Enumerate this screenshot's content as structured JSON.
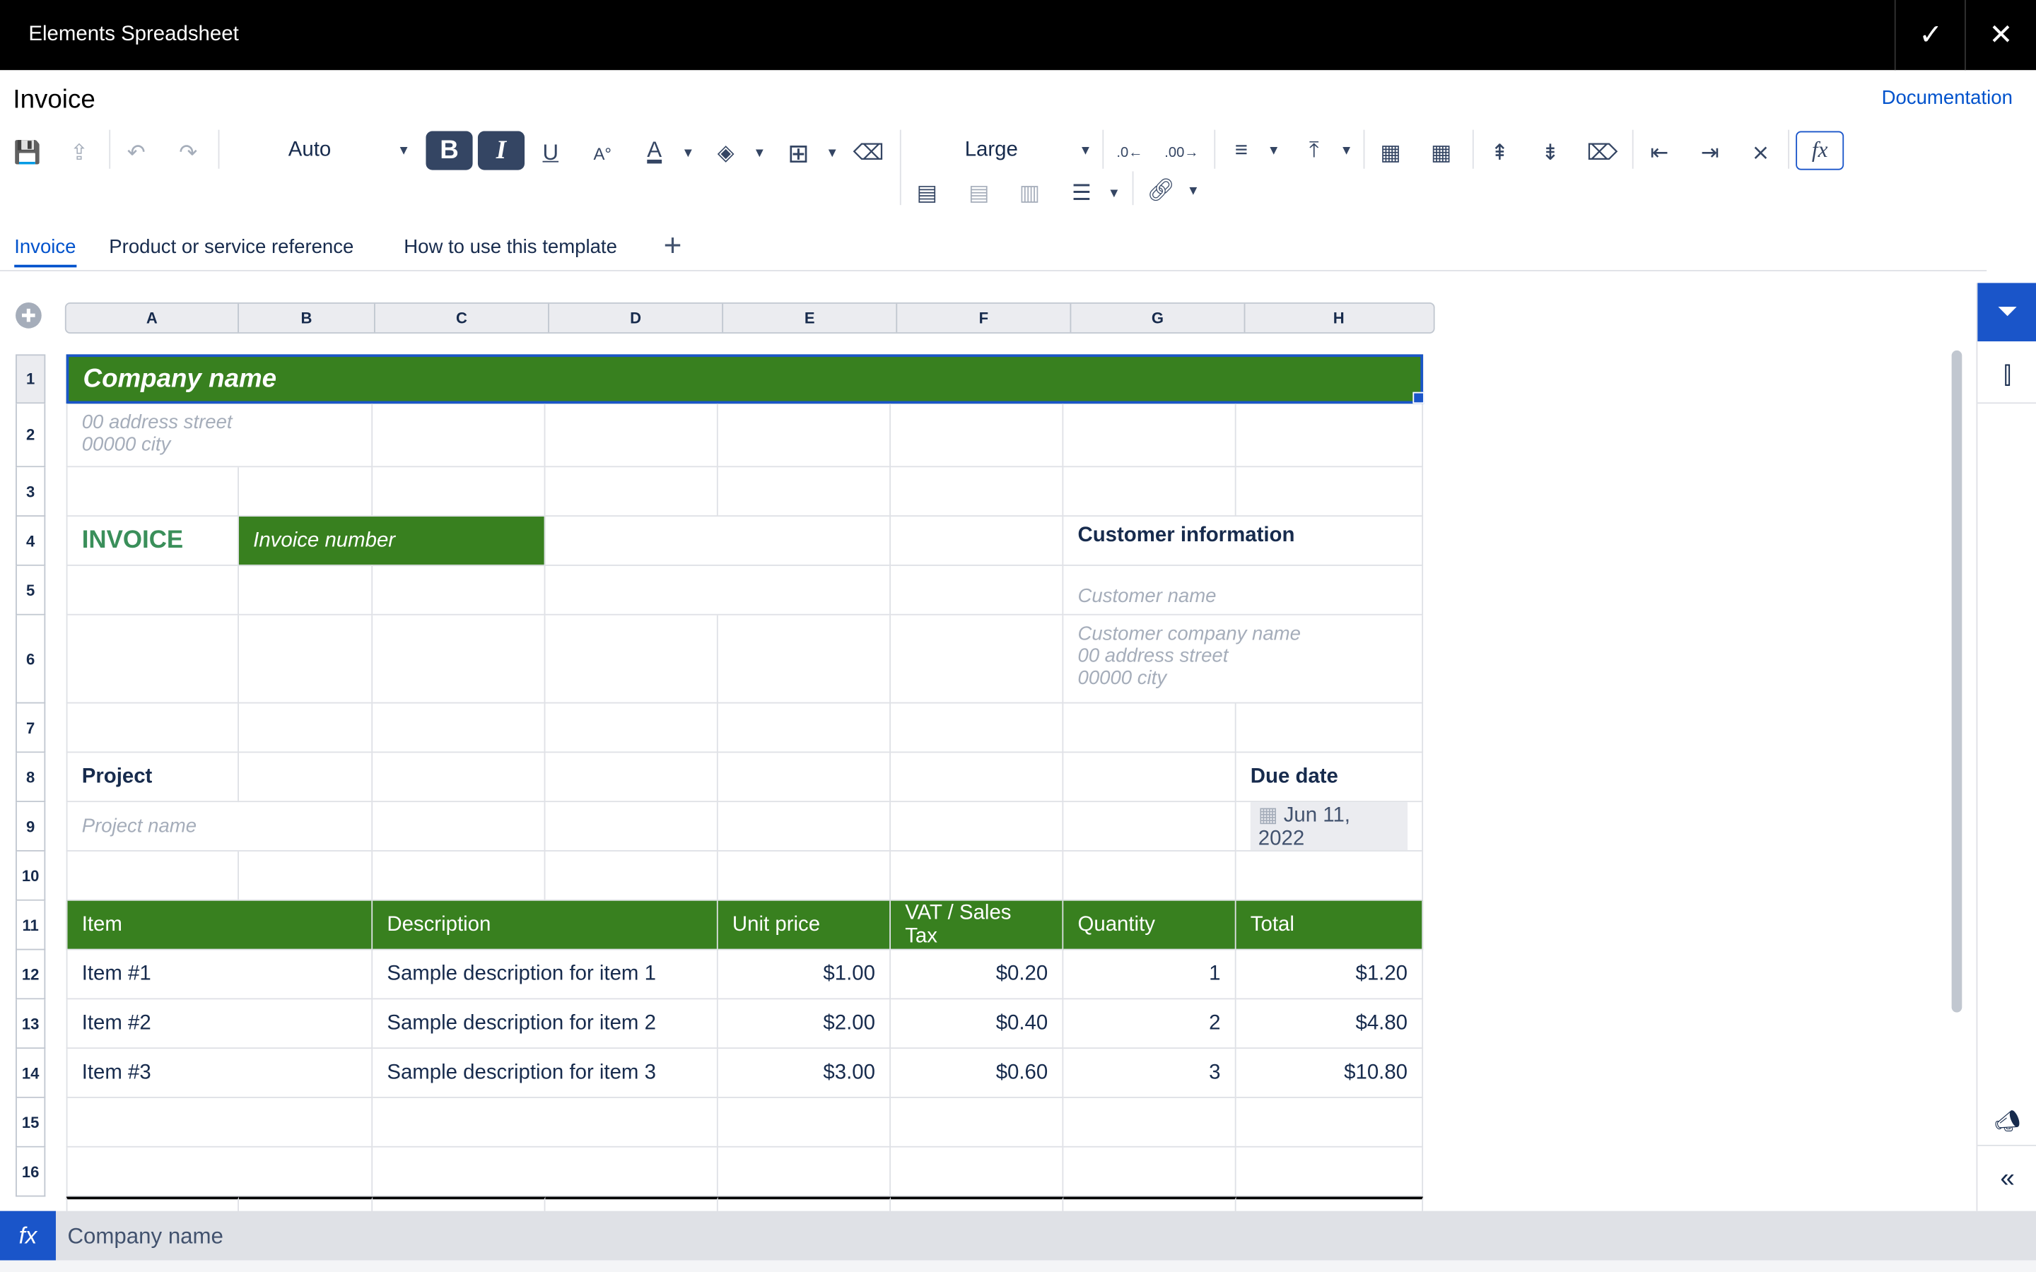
{
  "app": {
    "title": "Elements Spreadsheet",
    "confirm_icon": "check-icon",
    "close_icon": "close-icon"
  },
  "document": {
    "title": "Invoice",
    "documentation_link": "Documentation"
  },
  "toolbar": {
    "font_family": "Auto",
    "font_size": "Large"
  },
  "tabs": [
    {
      "label": "Invoice",
      "active": true
    },
    {
      "label": "Product or service reference"
    },
    {
      "label": "How to use this template"
    }
  ],
  "add_tab": "+",
  "columns": [
    "A",
    "B",
    "C",
    "D",
    "E",
    "F",
    "G",
    "H"
  ],
  "rows": [
    "1",
    "2",
    "3",
    "4",
    "5",
    "6",
    "7",
    "8",
    "9",
    "10",
    "11",
    "12",
    "13",
    "14",
    "15",
    "16"
  ],
  "cells": {
    "A1": "Company name",
    "A2": "00 address street\n00000 city",
    "A4": "INVOICE",
    "B4": "Invoice number",
    "G4": "Customer information",
    "G5": "Customer name",
    "G6": "Customer company name\n00 address street\n00000 city",
    "A8": "Project",
    "H8": "Due date",
    "A9": "Project name",
    "H9": "Jun 11, 2022",
    "A11": "Item",
    "C11": "Description",
    "E11": "Unit price",
    "F11": "VAT / Sales Tax",
    "G11": "Quantity",
    "H11": "Total",
    "A12": "Item #1",
    "C12": "Sample description for item 1",
    "E12": "$1.00",
    "F12": "$0.20",
    "G12": "1",
    "H12": "$1.20",
    "A13": "Item #2",
    "C13": "Sample description for item 2",
    "E13": "$2.00",
    "F13": "$0.40",
    "G13": "2",
    "H13": "$4.80",
    "A14": "Item #3",
    "C14": "Sample description for item 3",
    "E14": "$3.00",
    "F14": "$0.60",
    "G14": "3",
    "H14": "$10.80"
  },
  "formula_bar": {
    "icon": "fx",
    "value": "Company name"
  },
  "colors": {
    "header_green": "#38801f",
    "invoice_green": "#3a8f5a",
    "accent": "#1a55c9"
  }
}
